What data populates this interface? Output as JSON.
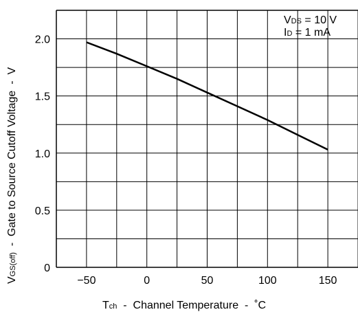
{
  "chart_data": {
    "type": "line",
    "ylabel": {
      "sym": "V",
      "sub": "GS(off)",
      "text": "  -  Gate to Source Cutoff Voltage  -  V"
    },
    "xlabel": {
      "sym": "T",
      "sub": "ch",
      "text": "  -  Channel Temperature  -  ˚C"
    },
    "x_ticks": [
      "−50",
      "0",
      "50",
      "100",
      "150"
    ],
    "y_ticks": [
      "0",
      "0.5",
      "1.0",
      "1.5",
      "2.0"
    ],
    "xlim": [
      -75,
      175
    ],
    "ylim": [
      0,
      2.25
    ],
    "annotation": {
      "line1_sym": "V",
      "line1_sub": "DS",
      "line1_val": " = 10 V",
      "line2_sym": "I",
      "line2_sub": "D",
      "line2_val": " = 1 mA"
    },
    "series": [
      {
        "x": [
          -50,
          -25,
          0,
          25,
          50,
          75,
          100,
          125,
          150
        ],
        "y": [
          1.97,
          1.87,
          1.76,
          1.65,
          1.53,
          1.41,
          1.29,
          1.16,
          1.03
        ]
      }
    ],
    "grid": true
  }
}
